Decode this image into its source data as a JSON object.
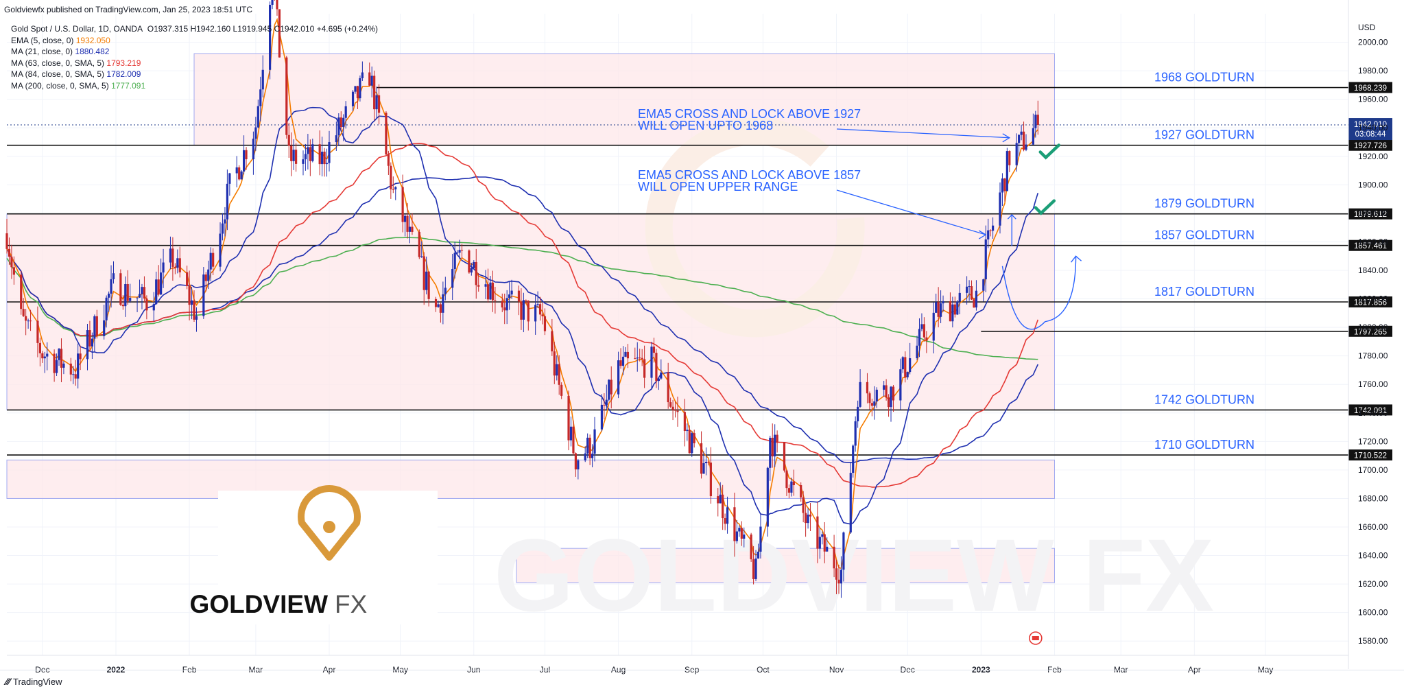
{
  "header": {
    "published_text": "Goldviewfx published on TradingView.com, Jan 25, 2023 18:51 UTC"
  },
  "legend": {
    "symbol": "Gold Spot / U.S. Dollar, 1D, OANDA",
    "ohlc": "O1937.315  H1942.160  L1919.945  C1942.010  +4.695 (+0.24%)",
    "indicators": [
      {
        "label": "EMA (5, close, 0)",
        "value": "1932.050",
        "color": "#f57c00"
      },
      {
        "label": "MA (21, close, 0)",
        "value": "1880.482",
        "color": "#1e2fb0"
      },
      {
        "label": "MA (63, close, 0, SMA, 5)",
        "value": "1793.219",
        "color": "#e53935"
      },
      {
        "label": "MA (84, close, 0, SMA, 5)",
        "value": "1782.009",
        "color": "#1e2fb0"
      },
      {
        "label": "MA (200, close, 0, SMA, 5)",
        "value": "1777.091",
        "color": "#4caf50"
      }
    ]
  },
  "brand": {
    "logo_text_main": "GOLDVIEW",
    "logo_text_accent": "FX",
    "watermark": "GOLDVIEW FX",
    "tradingview": "TradingView"
  },
  "colors": {
    "up": "#1e2fb0",
    "down": "#c62828",
    "zone_fill": "#fde7ea",
    "zone_border": "#9fa8f0",
    "level_text": "#2962ff",
    "check": "#1b9e77",
    "logo_gold": "#d9993a",
    "price_badge": "#1e3a8a"
  },
  "chart_data": {
    "type": "candlestick",
    "title": "Gold Spot / U.S. Dollar, 1D, OANDA",
    "y_axis": {
      "unit": "USD",
      "range": [
        1570,
        2020
      ],
      "ticks": [
        1580,
        1600,
        1620,
        1640,
        1660,
        1680,
        1700,
        1720,
        1740,
        1760,
        1780,
        1800,
        1820,
        1840,
        1860,
        1880,
        1900,
        1920,
        1940,
        1960,
        1980,
        2000
      ]
    },
    "x_axis": {
      "labels": [
        {
          "label": "Dec",
          "date": "2021-12-01"
        },
        {
          "label": "2022",
          "date": "2022-01-01"
        },
        {
          "label": "Feb",
          "date": "2022-02-01"
        },
        {
          "label": "Mar",
          "date": "2022-03-01"
        },
        {
          "label": "Apr",
          "date": "2022-04-01"
        },
        {
          "label": "May",
          "date": "2022-05-01"
        },
        {
          "label": "Jun",
          "date": "2022-06-01"
        },
        {
          "label": "Jul",
          "date": "2022-07-01"
        },
        {
          "label": "Aug",
          "date": "2022-08-01"
        },
        {
          "label": "Sep",
          "date": "2022-09-01"
        },
        {
          "label": "Oct",
          "date": "2022-10-01"
        },
        {
          "label": "Nov",
          "date": "2022-11-01"
        },
        {
          "label": "Dec",
          "date": "2022-12-01"
        },
        {
          "label": "2023",
          "date": "2023-01-01"
        },
        {
          "label": "Feb",
          "date": "2023-02-01"
        },
        {
          "label": "Mar",
          "date": "2023-03-01"
        },
        {
          "label": "Apr",
          "date": "2023-04-01"
        },
        {
          "label": "May",
          "date": "2023-05-01"
        }
      ]
    },
    "close_path": [
      [
        "2021-11-16",
        1866
      ],
      [
        "2021-11-22",
        1806
      ],
      [
        "2021-12-01",
        1782
      ],
      [
        "2021-12-15",
        1770
      ],
      [
        "2021-12-31",
        1829
      ],
      [
        "2022-01-14",
        1818
      ],
      [
        "2022-01-25",
        1848
      ],
      [
        "2022-02-04",
        1808
      ],
      [
        "2022-02-18",
        1898
      ],
      [
        "2022-03-01",
        1942
      ],
      [
        "2022-03-08",
        2050
      ],
      [
        "2022-03-15",
        1918
      ],
      [
        "2022-03-29",
        1918
      ],
      [
        "2022-04-18",
        1978
      ],
      [
        "2022-04-28",
        1894
      ],
      [
        "2022-05-16",
        1813
      ],
      [
        "2022-05-27",
        1853
      ],
      [
        "2022-06-13",
        1818
      ],
      [
        "2022-06-30",
        1807
      ],
      [
        "2022-07-14",
        1708
      ],
      [
        "2022-07-21",
        1718
      ],
      [
        "2022-08-01",
        1772
      ],
      [
        "2022-08-15",
        1776
      ],
      [
        "2022-08-26",
        1738
      ],
      [
        "2022-09-06",
        1702
      ],
      [
        "2022-09-28",
        1627
      ],
      [
        "2022-10-04",
        1724
      ],
      [
        "2022-10-21",
        1657
      ],
      [
        "2022-11-03",
        1629
      ],
      [
        "2022-11-10",
        1755
      ],
      [
        "2022-11-24",
        1755
      ],
      [
        "2022-12-13",
        1810
      ],
      [
        "2022-12-30",
        1824
      ],
      [
        "2023-01-13",
        1920
      ],
      [
        "2023-01-25",
        1942
      ]
    ],
    "series": [
      {
        "name": "EMA (5, close, 0)",
        "last": 1932.05
      },
      {
        "name": "MA (21, close, 0)",
        "last": 1880.482
      },
      {
        "name": "MA (63, close, 0, SMA, 5)",
        "last": 1793.219
      },
      {
        "name": "MA (84, close, 0, SMA, 5)",
        "last": 1782.009
      },
      {
        "name": "MA (200, close, 0, SMA, 5)",
        "last": 1777.091
      }
    ],
    "levels": [
      {
        "value": 1968.239,
        "label": "1968 GOLDTURN",
        "badge": "1968.239"
      },
      {
        "value": 1927.726,
        "label": "1927 GOLDTURN",
        "badge": "1927.726"
      },
      {
        "value": 1879.612,
        "label": "1879 GOLDTURN",
        "badge": "1879.612"
      },
      {
        "value": 1857.461,
        "label": "1857 GOLDTURN",
        "badge": "1857.461"
      },
      {
        "value": 1817.856,
        "label": "1817 GOLDTURN",
        "badge": "1817.856"
      },
      {
        "value": 1797.265,
        "label": "",
        "badge": "1797.265"
      },
      {
        "value": 1742.091,
        "label": "1742 GOLDTURN",
        "badge": "1742.091"
      },
      {
        "value": 1710.522,
        "label": "1710 GOLDTURN",
        "badge": "1710.522"
      }
    ],
    "current_price": {
      "value": "1942.010",
      "countdown": "03:08:44"
    },
    "annotations": [
      {
        "line1": "EMA5 CROSS AND LOCK ABOVE 1927",
        "line2": "WILL OPEN UPTO 1968"
      },
      {
        "line1": "EMA5 CROSS AND LOCK ABOVE 1857",
        "line2": "WILL OPEN UPPER RANGE"
      }
    ],
    "grid": true,
    "legend_position": "top-left"
  }
}
